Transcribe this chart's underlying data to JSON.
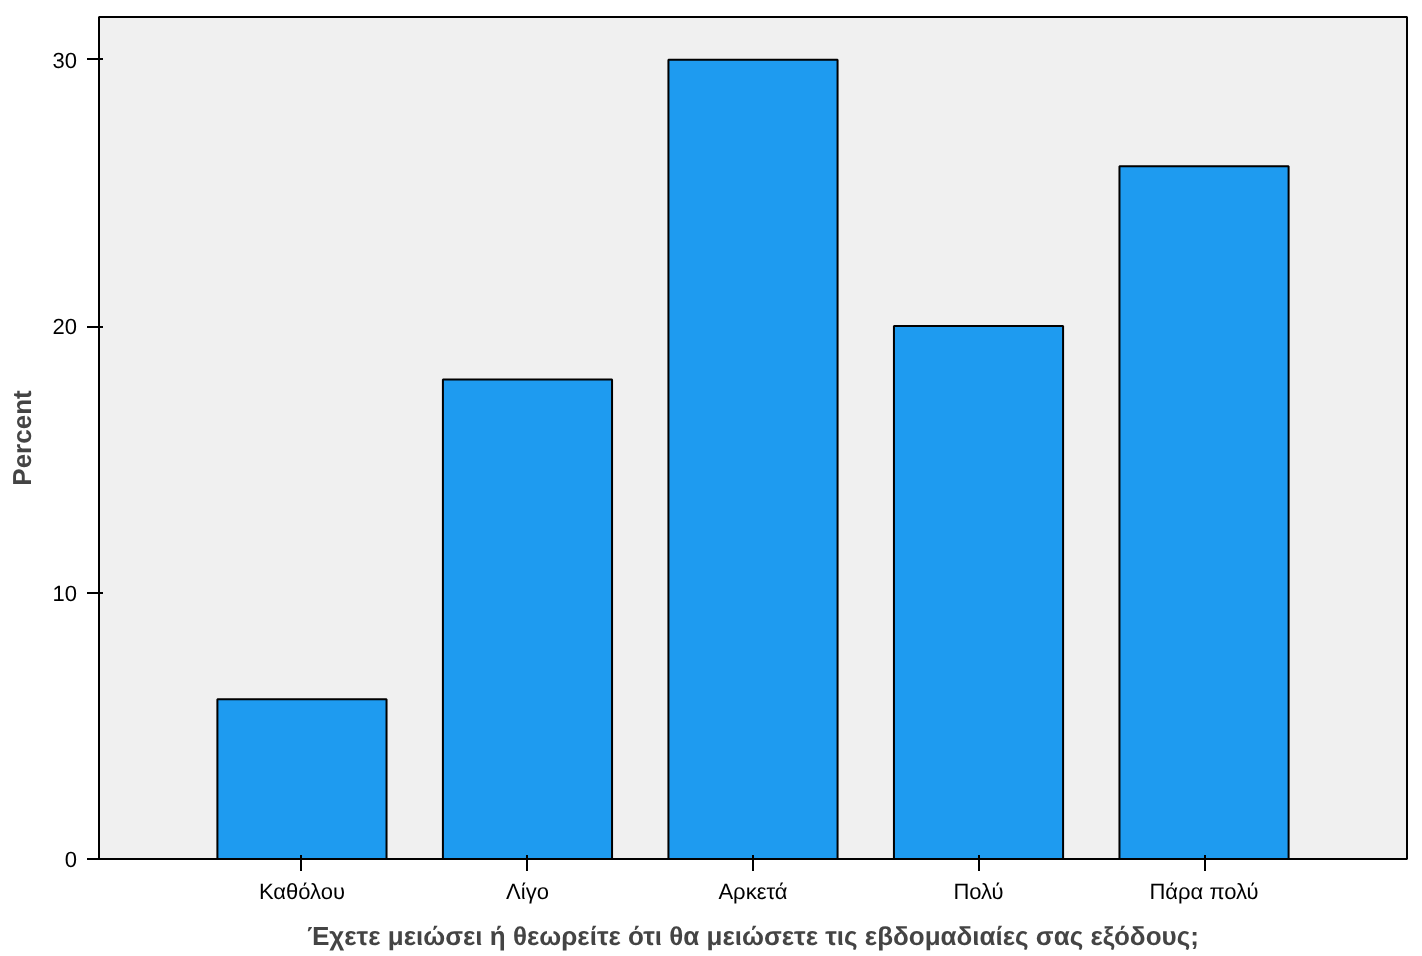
{
  "chart_data": {
    "type": "bar",
    "xlabel": "Έχετε μειώσει ή θεωρείτε ότι θα μειώσετε τις εβδομαδιαίες σας εξόδους;",
    "ylabel": "Percent",
    "categories": [
      "Καθόλου",
      "Λίγο",
      "Αρκετά",
      "Πολύ",
      "Πάρα πολύ"
    ],
    "values": [
      6,
      18,
      30,
      20,
      26
    ],
    "color": "#1e9bf0",
    "ylim": [
      0,
      31.6
    ],
    "yticks": [
      0,
      10,
      20,
      30
    ],
    "grid": false
  }
}
